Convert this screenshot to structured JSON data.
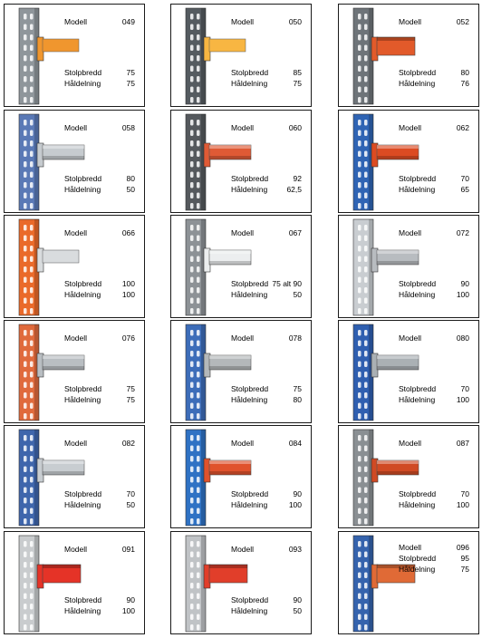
{
  "labels": {
    "model": "Modell",
    "width": "Stolpbredd",
    "pitch": "Håldelning"
  },
  "cards": [
    {
      "model": "049",
      "width": "75",
      "pitch": "75",
      "post": "#8f969b",
      "beam": "#f0962e",
      "beamType": "flat"
    },
    {
      "model": "050",
      "width": "85",
      "pitch": "75",
      "post": "#555b60",
      "beam": "#f8b642",
      "beamType": "flat"
    },
    {
      "model": "052",
      "width": "80",
      "pitch": "76",
      "post": "#6e7479",
      "beam": "#e25a2a",
      "beamType": "box"
    },
    {
      "model": "058",
      "width": "80",
      "pitch": "50",
      "post": "#5a79b6",
      "beam": "#c6cbcf",
      "beamType": "channel"
    },
    {
      "model": "060",
      "width": "92",
      "pitch": "62,5",
      "post": "#55595d",
      "beam": "#df5a35",
      "beamType": "channel"
    },
    {
      "model": "062",
      "width": "70",
      "pitch": "65",
      "post": "#2f64b4",
      "beam": "#dc4b22",
      "beamType": "channel"
    },
    {
      "model": "066",
      "width": "100",
      "pitch": "100",
      "post": "#ea6a2a",
      "beam": "#d9dcde",
      "beamType": "flat"
    },
    {
      "model": "067",
      "width": "75 alt 90",
      "pitch": "50",
      "post": "#8d9296",
      "beam": "#eceeef",
      "beamType": "channel"
    },
    {
      "model": "072",
      "width": "90",
      "pitch": "100",
      "post": "#c9cdd1",
      "beam": "#b8bcc0",
      "beamType": "channel"
    },
    {
      "model": "076",
      "width": "75",
      "pitch": "75",
      "post": "#e06a3c",
      "beam": "#b9bec2",
      "beamType": "channel"
    },
    {
      "model": "078",
      "width": "75",
      "pitch": "80",
      "post": "#3d6db9",
      "beam": "#b4b8ba",
      "beamType": "channel"
    },
    {
      "model": "080",
      "width": "70",
      "pitch": "100",
      "post": "#2f5fb0",
      "beam": "#aab0b4",
      "beamType": "channel"
    },
    {
      "model": "082",
      "width": "70",
      "pitch": "50",
      "post": "#3f66ac",
      "beam": "#c8cdd1",
      "beamType": "channel"
    },
    {
      "model": "084",
      "width": "90",
      "pitch": "100",
      "post": "#2f72c4",
      "beam": "#e0522c",
      "beamType": "channel"
    },
    {
      "model": "087",
      "width": "70",
      "pitch": "100",
      "post": "#8a8f93",
      "beam": "#d04a24",
      "beamType": "channel"
    },
    {
      "model": "091",
      "width": "90",
      "pitch": "100",
      "post": "#c9ccce",
      "beam": "#e53327",
      "beamType": "box"
    },
    {
      "model": "093",
      "width": "90",
      "pitch": "50",
      "post": "#c0c3c6",
      "beam": "#e13e2a",
      "beamType": "box"
    },
    {
      "model": "096",
      "width": "95",
      "pitch": "75",
      "post": "#3563ad",
      "beam": "#e06a36",
      "beamType": "box"
    }
  ]
}
